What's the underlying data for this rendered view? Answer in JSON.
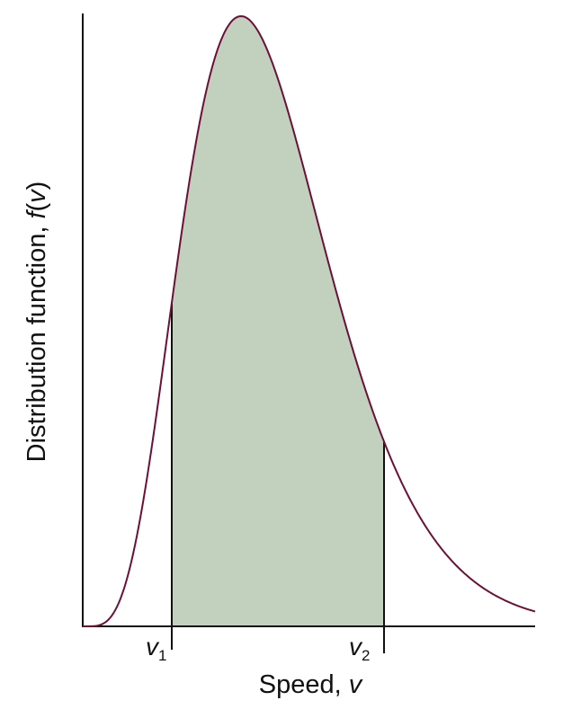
{
  "y_axis_label": {
    "text": "Distribution function, ",
    "symbol": "f",
    "open": "(",
    "variable": "v",
    "close": ")"
  },
  "x_axis_label": {
    "text": "Speed, ",
    "variable": "v"
  },
  "markers": [
    {
      "symbol": "v",
      "subscript": "1"
    },
    {
      "symbol": "v",
      "subscript": "2"
    }
  ]
}
